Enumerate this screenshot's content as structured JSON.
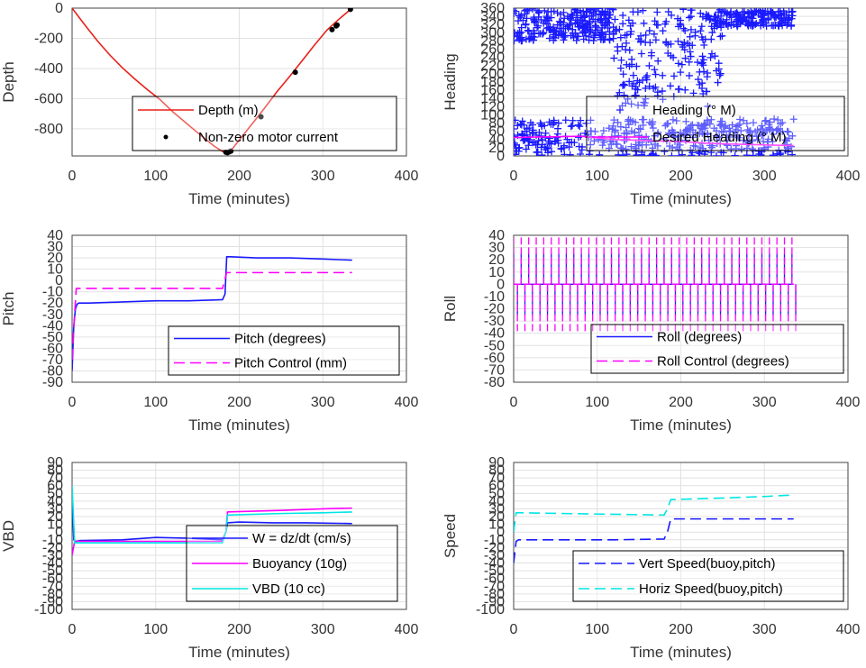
{
  "figure": {
    "background": "#ffffff",
    "gridColor": "#e1e1e1",
    "axisColor": "#444444"
  },
  "chart_data": [
    {
      "type": "line",
      "xlabel": "Time (minutes)",
      "ylabel": "Depth",
      "xlim": [
        0,
        400
      ],
      "ylim": [
        -980,
        0
      ],
      "xticks": [
        0,
        100,
        200,
        300,
        400
      ],
      "yticks": [
        0,
        -200,
        -400,
        -600,
        -800
      ],
      "grid": true,
      "legend_position": "middle-right",
      "series": [
        {
          "name": "Depth (m)",
          "style": "line",
          "color": "#e8201a",
          "x": [
            0,
            15,
            30,
            45,
            60,
            75,
            90,
            105,
            120,
            135,
            150,
            160,
            170,
            180,
            185,
            190,
            200,
            215,
            230,
            245,
            260,
            275,
            290,
            305,
            320,
            335
          ],
          "y": [
            0,
            -110,
            -215,
            -310,
            -395,
            -470,
            -540,
            -605,
            -685,
            -755,
            -825,
            -870,
            -915,
            -950,
            -958,
            -945,
            -875,
            -770,
            -665,
            -555,
            -455,
            -350,
            -245,
            -145,
            -70,
            0
          ]
        },
        {
          "name": "Non-zero motor current",
          "style": "dots",
          "color": "#000000",
          "x": [
            184,
            186,
            188,
            190,
            226,
            267,
            311,
            316,
            317,
            333
          ],
          "y": [
            -955,
            -958,
            -953,
            -948,
            -720,
            -425,
            -143,
            -118,
            -112,
            -8
          ]
        }
      ]
    },
    {
      "type": "scatter",
      "xlabel": "Time (minutes)",
      "ylabel": "Heading",
      "xlim": [
        0,
        400
      ],
      "ylim": [
        0,
        360
      ],
      "xticks": [
        0,
        100,
        200,
        300,
        400
      ],
      "yticks": [
        0,
        20,
        40,
        60,
        80,
        100,
        120,
        140,
        160,
        180,
        200,
        220,
        240,
        260,
        280,
        300,
        320,
        340,
        360
      ],
      "grid": true,
      "legend_position": "middle-right",
      "series": [
        {
          "name": "Heading (° M)",
          "style": "plus",
          "color": "#1a1aff",
          "bands": [
            {
              "x0": 0,
              "x1": 120,
              "y0": 280,
              "y1": 360,
              "count": 260
            },
            {
              "x0": 0,
              "x1": 335,
              "y0": 0,
              "y1": 90,
              "count": 420
            },
            {
              "x0": 120,
              "x1": 250,
              "y0": 120,
              "y1": 360,
              "count": 200
            },
            {
              "x0": 240,
              "x1": 335,
              "y0": 315,
              "y1": 355,
              "count": 170
            }
          ]
        },
        {
          "name": "Desired Heading (° M)",
          "style": "line",
          "color": "#ff00ff",
          "x": [
            0,
            80,
            120,
            200,
            240,
            335
          ],
          "y": [
            45,
            48,
            40,
            35,
            30,
            25
          ]
        }
      ]
    },
    {
      "type": "line",
      "xlabel": "Time (minutes)",
      "ylabel": "Pitch",
      "xlim": [
        0,
        400
      ],
      "ylim": [
        -90,
        40
      ],
      "xticks": [
        0,
        100,
        200,
        300,
        400
      ],
      "yticks": [
        40,
        30,
        20,
        10,
        0,
        -10,
        -20,
        -30,
        -40,
        -50,
        -60,
        -70,
        -80,
        -90
      ],
      "grid": true,
      "legend_position": "bottom-right",
      "series": [
        {
          "name": "Pitch (degrees)",
          "style": "line",
          "color": "#1a1aff",
          "x": [
            0,
            2,
            4,
            6,
            8,
            20,
            60,
            100,
            140,
            180,
            183,
            185,
            190,
            220,
            260,
            300,
            335
          ],
          "y": [
            -80,
            -40,
            -25,
            -21,
            -20,
            -20,
            -19,
            -18,
            -18,
            -17,
            -12,
            21,
            21,
            20,
            20,
            19,
            18
          ]
        },
        {
          "name": "Pitch Control (mm)",
          "style": "dashed",
          "color": "#ff00ff",
          "x": [
            0,
            3,
            5,
            180,
            185,
            335
          ],
          "y": [
            -70,
            -30,
            -7,
            -7,
            7,
            7
          ]
        }
      ]
    },
    {
      "type": "line",
      "xlabel": "Time (minutes)",
      "ylabel": "Roll",
      "xlim": [
        0,
        400
      ],
      "ylim": [
        -80,
        40
      ],
      "xticks": [
        0,
        100,
        200,
        300,
        400
      ],
      "yticks": [
        40,
        30,
        20,
        10,
        0,
        -10,
        -20,
        -30,
        -40,
        -50,
        -60,
        -70,
        -80
      ],
      "grid": true,
      "legend_position": "bottom-right",
      "series": [
        {
          "name": "Roll (degrees)",
          "style": "line",
          "color": "#1a1aff",
          "amplitude": 25,
          "period": 9,
          "x_range": [
            0,
            335
          ]
        },
        {
          "name": "Roll Control (degrees)",
          "style": "dashed",
          "color": "#ff00ff",
          "amplitude": 40,
          "period": 9,
          "x_range": [
            0,
            335
          ]
        }
      ]
    },
    {
      "type": "line",
      "xlabel": "Time (minutes)",
      "ylabel": "VBD",
      "xlim": [
        0,
        400
      ],
      "ylim": [
        -100,
        90
      ],
      "xticks": [
        0,
        100,
        200,
        300,
        400
      ],
      "yticks": [
        90,
        80,
        70,
        60,
        50,
        40,
        30,
        20,
        10,
        0,
        -10,
        -20,
        -30,
        -40,
        -50,
        -60,
        -70,
        -80,
        -90,
        -100
      ],
      "grid": true,
      "legend_position": "bottom-right",
      "series": [
        {
          "name": "W = dz/dt (cm/s)",
          "style": "line",
          "color": "#1a1aff",
          "x": [
            0,
            2,
            4,
            10,
            60,
            100,
            140,
            180,
            184,
            186,
            200,
            240,
            280,
            335
          ],
          "y": [
            50,
            -10,
            -12,
            -11,
            -10,
            -7,
            -8,
            -10,
            0,
            12,
            13,
            12,
            12,
            11
          ]
        },
        {
          "name": "Buoyancy (10g)",
          "style": "line",
          "color": "#ff00ff",
          "x": [
            0,
            3,
            5,
            180,
            184,
            186,
            250,
            300,
            335
          ],
          "y": [
            -30,
            -12,
            -12,
            -12,
            0,
            26,
            28,
            30,
            31
          ]
        },
        {
          "name": "VBD (10 cc)",
          "style": "line",
          "color": "#00e5e5",
          "x": [
            0,
            3,
            5,
            180,
            184,
            186,
            250,
            300,
            335
          ],
          "y": [
            60,
            -14,
            -14,
            -14,
            0,
            22,
            24,
            25,
            26
          ]
        }
      ]
    },
    {
      "type": "line",
      "xlabel": "Time (minutes)",
      "ylabel": "Speed",
      "xlim": [
        0,
        400
      ],
      "ylim": [
        -100,
        90
      ],
      "xticks": [
        0,
        100,
        200,
        300,
        400
      ],
      "yticks": [
        90,
        80,
        70,
        60,
        50,
        40,
        30,
        20,
        10,
        0,
        -10,
        -20,
        -30,
        -40,
        -50,
        -60,
        -70,
        -80,
        -90,
        -100
      ],
      "grid": true,
      "legend_position": "bottom-right",
      "series": [
        {
          "name": "Vert Speed(buoy,pitch)",
          "style": "dashed",
          "color": "#1a1aff",
          "x": [
            0,
            3,
            6,
            60,
            120,
            180,
            184,
            188,
            250,
            300,
            335
          ],
          "y": [
            -40,
            -12,
            -10,
            -10,
            -10,
            -9,
            0,
            17,
            17,
            17,
            17
          ]
        },
        {
          "name": "Horiz Speed(buoy,pitch)",
          "style": "dashed",
          "color": "#00e5e5",
          "x": [
            0,
            3,
            6,
            60,
            120,
            180,
            184,
            188,
            250,
            300,
            335
          ],
          "y": [
            0,
            25,
            25,
            24,
            23,
            22,
            30,
            42,
            44,
            46,
            48
          ]
        }
      ]
    }
  ]
}
